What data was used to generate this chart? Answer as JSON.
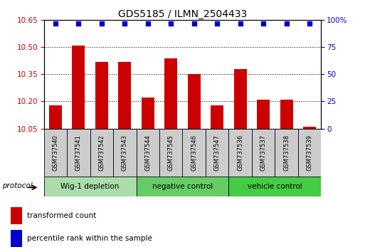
{
  "title": "GDS5185 / ILMN_2504433",
  "samples": [
    "GSM737540",
    "GSM737541",
    "GSM737542",
    "GSM737543",
    "GSM737544",
    "GSM737545",
    "GSM737546",
    "GSM737547",
    "GSM737536",
    "GSM737537",
    "GSM737538",
    "GSM737539"
  ],
  "bar_values": [
    10.18,
    10.51,
    10.42,
    10.42,
    10.22,
    10.44,
    10.35,
    10.18,
    10.38,
    10.21,
    10.21,
    10.06
  ],
  "percentile_values": [
    97,
    97,
    97,
    97,
    97,
    97,
    97,
    97,
    97,
    97,
    97,
    97
  ],
  "ylim_left": [
    10.05,
    10.65
  ],
  "yticks_left": [
    10.05,
    10.2,
    10.35,
    10.5,
    10.65
  ],
  "ylim_right": [
    0,
    100
  ],
  "yticks_right": [
    0,
    25,
    50,
    75,
    100
  ],
  "ytick_labels_right": [
    "0",
    "25",
    "50",
    "75",
    "100%"
  ],
  "bar_color": "#CC0000",
  "percentile_color": "#0000CC",
  "bar_width": 0.55,
  "groups": [
    {
      "label": "Wig-1 depletion",
      "indices": [
        0,
        1,
        2,
        3
      ],
      "color": "#aaddaa"
    },
    {
      "label": "negative control",
      "indices": [
        4,
        5,
        6,
        7
      ],
      "color": "#66cc66"
    },
    {
      "label": "vehicle control",
      "indices": [
        8,
        9,
        10,
        11
      ],
      "color": "#44cc44"
    }
  ],
  "protocol_label": "protocol",
  "legend_bar_label": "transformed count",
  "legend_percentile_label": "percentile rank within the sample",
  "background_color": "#ffffff",
  "tick_label_color_left": "#CC0000",
  "tick_label_color_right": "#0000CC"
}
